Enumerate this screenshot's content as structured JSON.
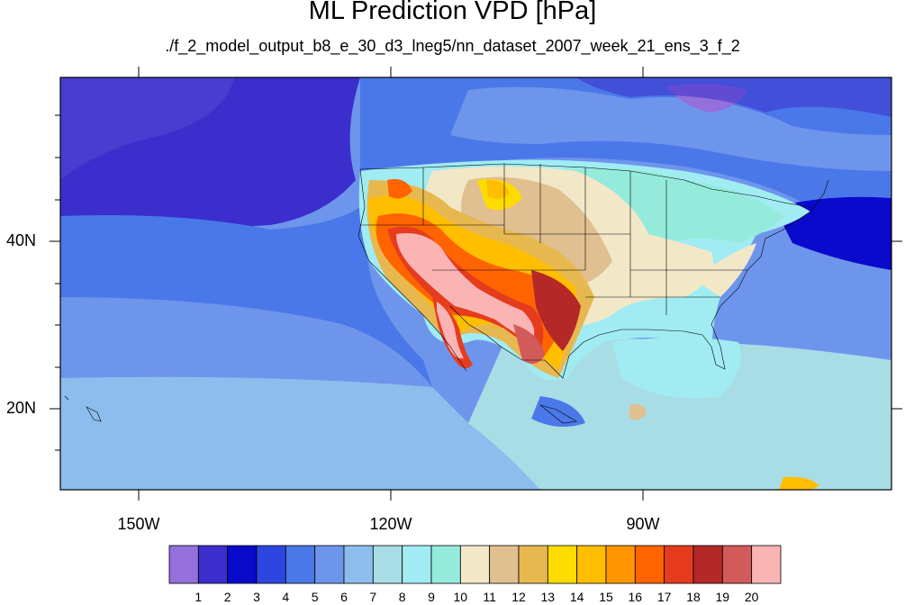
{
  "title": "ML Prediction VPD [hPa]",
  "subtitle": "./f_2_model_output_b8_e_30_d3_lneg5/nn_dataset_2007_week_21_ens_3_f_2",
  "axes": {
    "lat_labels": [
      "40N",
      "20N"
    ],
    "lon_labels": [
      "150W",
      "120W",
      "90W"
    ],
    "lon_range": [
      "160W",
      "62W"
    ],
    "lat_range": [
      "10N",
      "59N"
    ]
  },
  "colorbar": {
    "colors": [
      "#9370DB",
      "#3B2ECC",
      "#0A0ACC",
      "#2E46E0",
      "#4A78E8",
      "#6E95EC",
      "#8DBDEC",
      "#A8DDE6",
      "#A0ECF2",
      "#94EBDC",
      "#F2E8C8",
      "#E0C090",
      "#E8B850",
      "#FFDC00",
      "#FFBE00",
      "#FF9600",
      "#FF6400",
      "#E63C1E",
      "#B42828",
      "#D25A5A",
      "#FAB4B4"
    ],
    "labels": [
      "1",
      "2",
      "3",
      "4",
      "5",
      "6",
      "7",
      "8",
      "9",
      "10",
      "11",
      "12",
      "13",
      "14",
      "15",
      "16",
      "17",
      "18",
      "19",
      "20"
    ]
  }
}
